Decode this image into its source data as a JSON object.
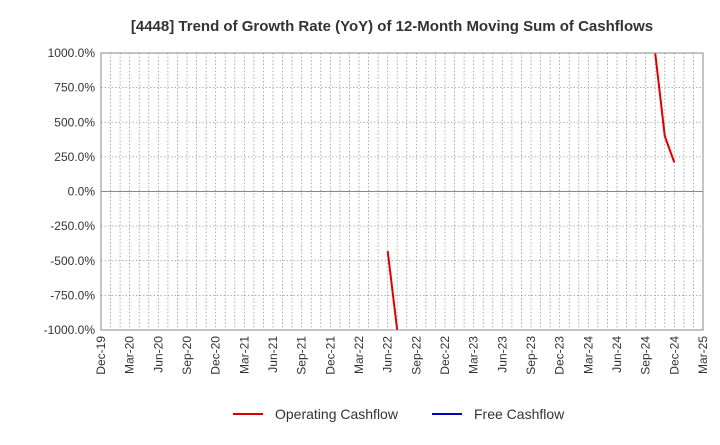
{
  "chart_data": {
    "type": "line",
    "title": "[4448]  Trend of Growth Rate (YoY) of 12-Month Moving Sum of Cashflows",
    "xlabel": "",
    "ylabel": "",
    "ylim": [
      -1000,
      1000
    ],
    "yticks": [
      1000,
      750,
      500,
      250,
      0,
      -250,
      -500,
      -750,
      -1000
    ],
    "ytick_labels": [
      "1000.0%",
      "750.0%",
      "500.0%",
      "250.0%",
      "0.0%",
      "-250.0%",
      "-500.0%",
      "-750.0%",
      "-1000.0%"
    ],
    "x_start": "2019-12",
    "x_end": "2025-03",
    "xtick_labels": [
      "Dec-19",
      "Mar-20",
      "Jun-20",
      "Sep-20",
      "Dec-20",
      "Mar-21",
      "Jun-21",
      "Sep-21",
      "Dec-21",
      "Mar-22",
      "Jun-22",
      "Sep-22",
      "Dec-22",
      "Mar-23",
      "Jun-23",
      "Sep-23",
      "Dec-23",
      "Mar-24",
      "Jun-24",
      "Sep-24",
      "Dec-24",
      "Mar-25"
    ],
    "grid": true,
    "legend_position": "bottom",
    "series": [
      {
        "name": "Operating Cashflow",
        "color": "#dd0000",
        "points": [
          {
            "x": "2022-06",
            "y": -430
          },
          {
            "x": "2022-07",
            "y": -1000
          }
        ],
        "points_b": [
          {
            "x": "2024-10",
            "y": 1000
          },
          {
            "x": "2024-11",
            "y": 400
          },
          {
            "x": "2024-12",
            "y": 210
          }
        ]
      },
      {
        "name": "Free Cashflow",
        "color": "#0000cc",
        "points": [],
        "points_b": []
      }
    ]
  }
}
